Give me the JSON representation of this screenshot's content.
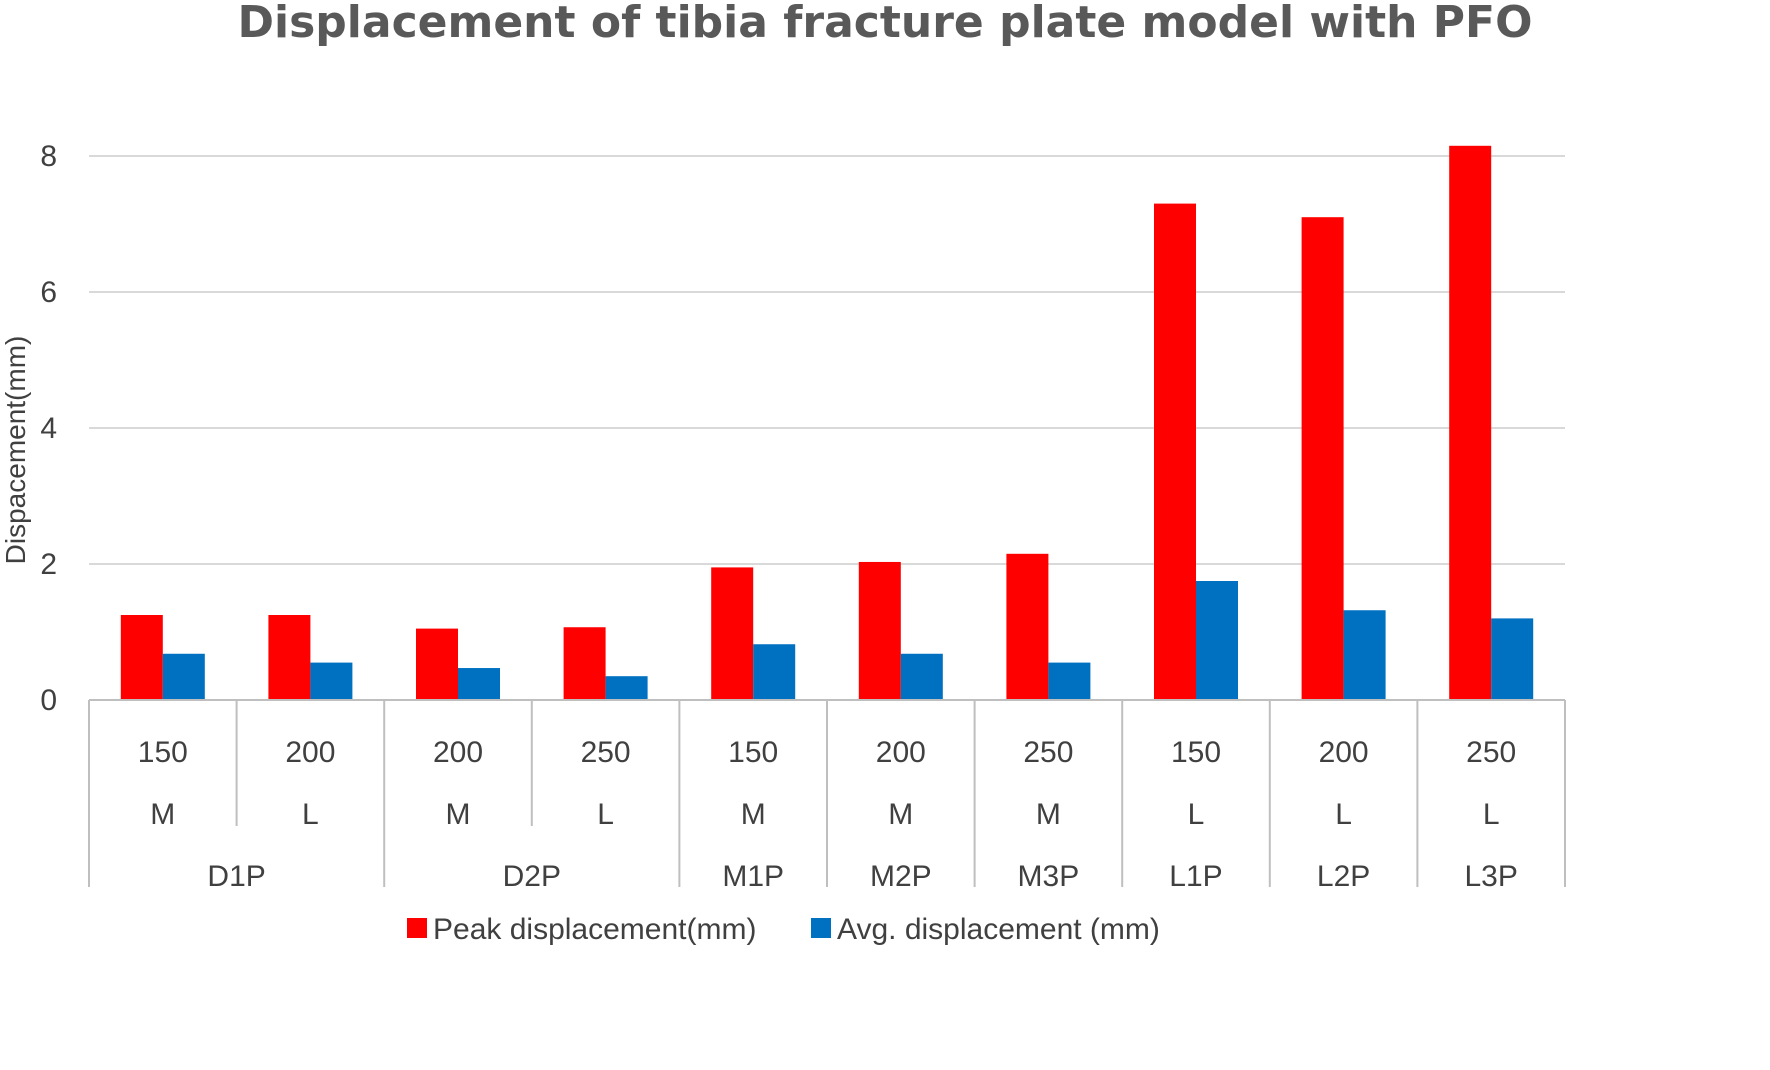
{
  "chart_data": {
    "type": "bar",
    "title": "Displacement of tibia fracture plate model with PFO",
    "ylabel": "Dispacement(mm)",
    "xlabel": "",
    "ylim": [
      0,
      8
    ],
    "yticks": [
      0,
      2,
      4,
      6,
      8
    ],
    "grid": true,
    "legend_position": "bottom",
    "categories": [
      {
        "load": "150",
        "side": "M",
        "group": "D1P"
      },
      {
        "load": "200",
        "side": "L",
        "group": "D1P"
      },
      {
        "load": "200",
        "side": "M",
        "group": "D2P"
      },
      {
        "load": "250",
        "side": "L",
        "group": "D2P"
      },
      {
        "load": "150",
        "side": "M",
        "group": "M1P"
      },
      {
        "load": "200",
        "side": "M",
        "group": "M2P"
      },
      {
        "load": "250",
        "side": "M",
        "group": "M3P"
      },
      {
        "load": "150",
        "side": "L",
        "group": "L1P"
      },
      {
        "load": "200",
        "side": "L",
        "group": "L2P"
      },
      {
        "load": "250",
        "side": "L",
        "group": "L3P"
      }
    ],
    "groups": [
      "D1P",
      "D2P",
      "M1P",
      "M2P",
      "M3P",
      "L1P",
      "L2P",
      "L3P"
    ],
    "series": [
      {
        "name": "Peak displacement(mm)",
        "color": "#ff0000",
        "values": [
          1.25,
          1.25,
          1.05,
          1.07,
          1.95,
          2.03,
          2.15,
          7.3,
          7.1,
          8.15
        ]
      },
      {
        "name": "Avg. displacement (mm)",
        "color": "#0070c0",
        "values": [
          0.68,
          0.55,
          0.47,
          0.35,
          0.82,
          0.68,
          0.55,
          1.75,
          1.32,
          1.2
        ]
      }
    ]
  }
}
